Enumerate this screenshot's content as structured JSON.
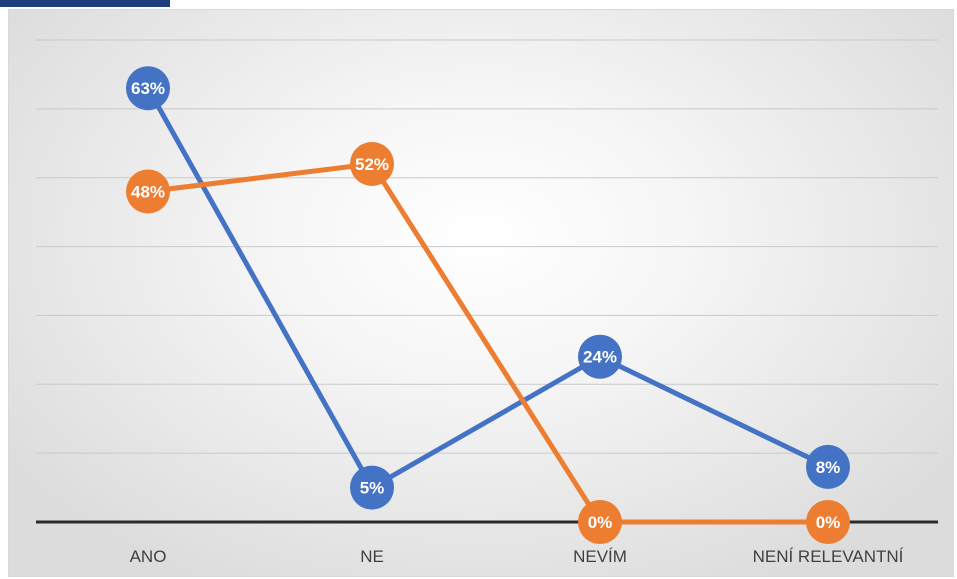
{
  "chart_data": {
    "type": "line",
    "categories": [
      "ANO",
      "NE",
      "NEVÍM",
      "NENÍ RELEVANTNÍ"
    ],
    "series": [
      {
        "values": [
          63,
          5,
          24,
          8
        ],
        "labels": [
          "63%",
          "5%",
          "24%",
          "8%"
        ],
        "color": "#4472c4"
      },
      {
        "values": [
          48,
          52,
          0,
          0
        ],
        "labels": [
          "48%",
          "52%",
          "0%",
          "0%"
        ],
        "color": "#ed7d31"
      }
    ],
    "ylim": [
      0,
      70
    ],
    "grid": true,
    "legend": "none"
  },
  "colors": {
    "gridline": "#c9c9c9",
    "axis": "#2b2b2b",
    "header_tab": "#1f3d7a"
  }
}
